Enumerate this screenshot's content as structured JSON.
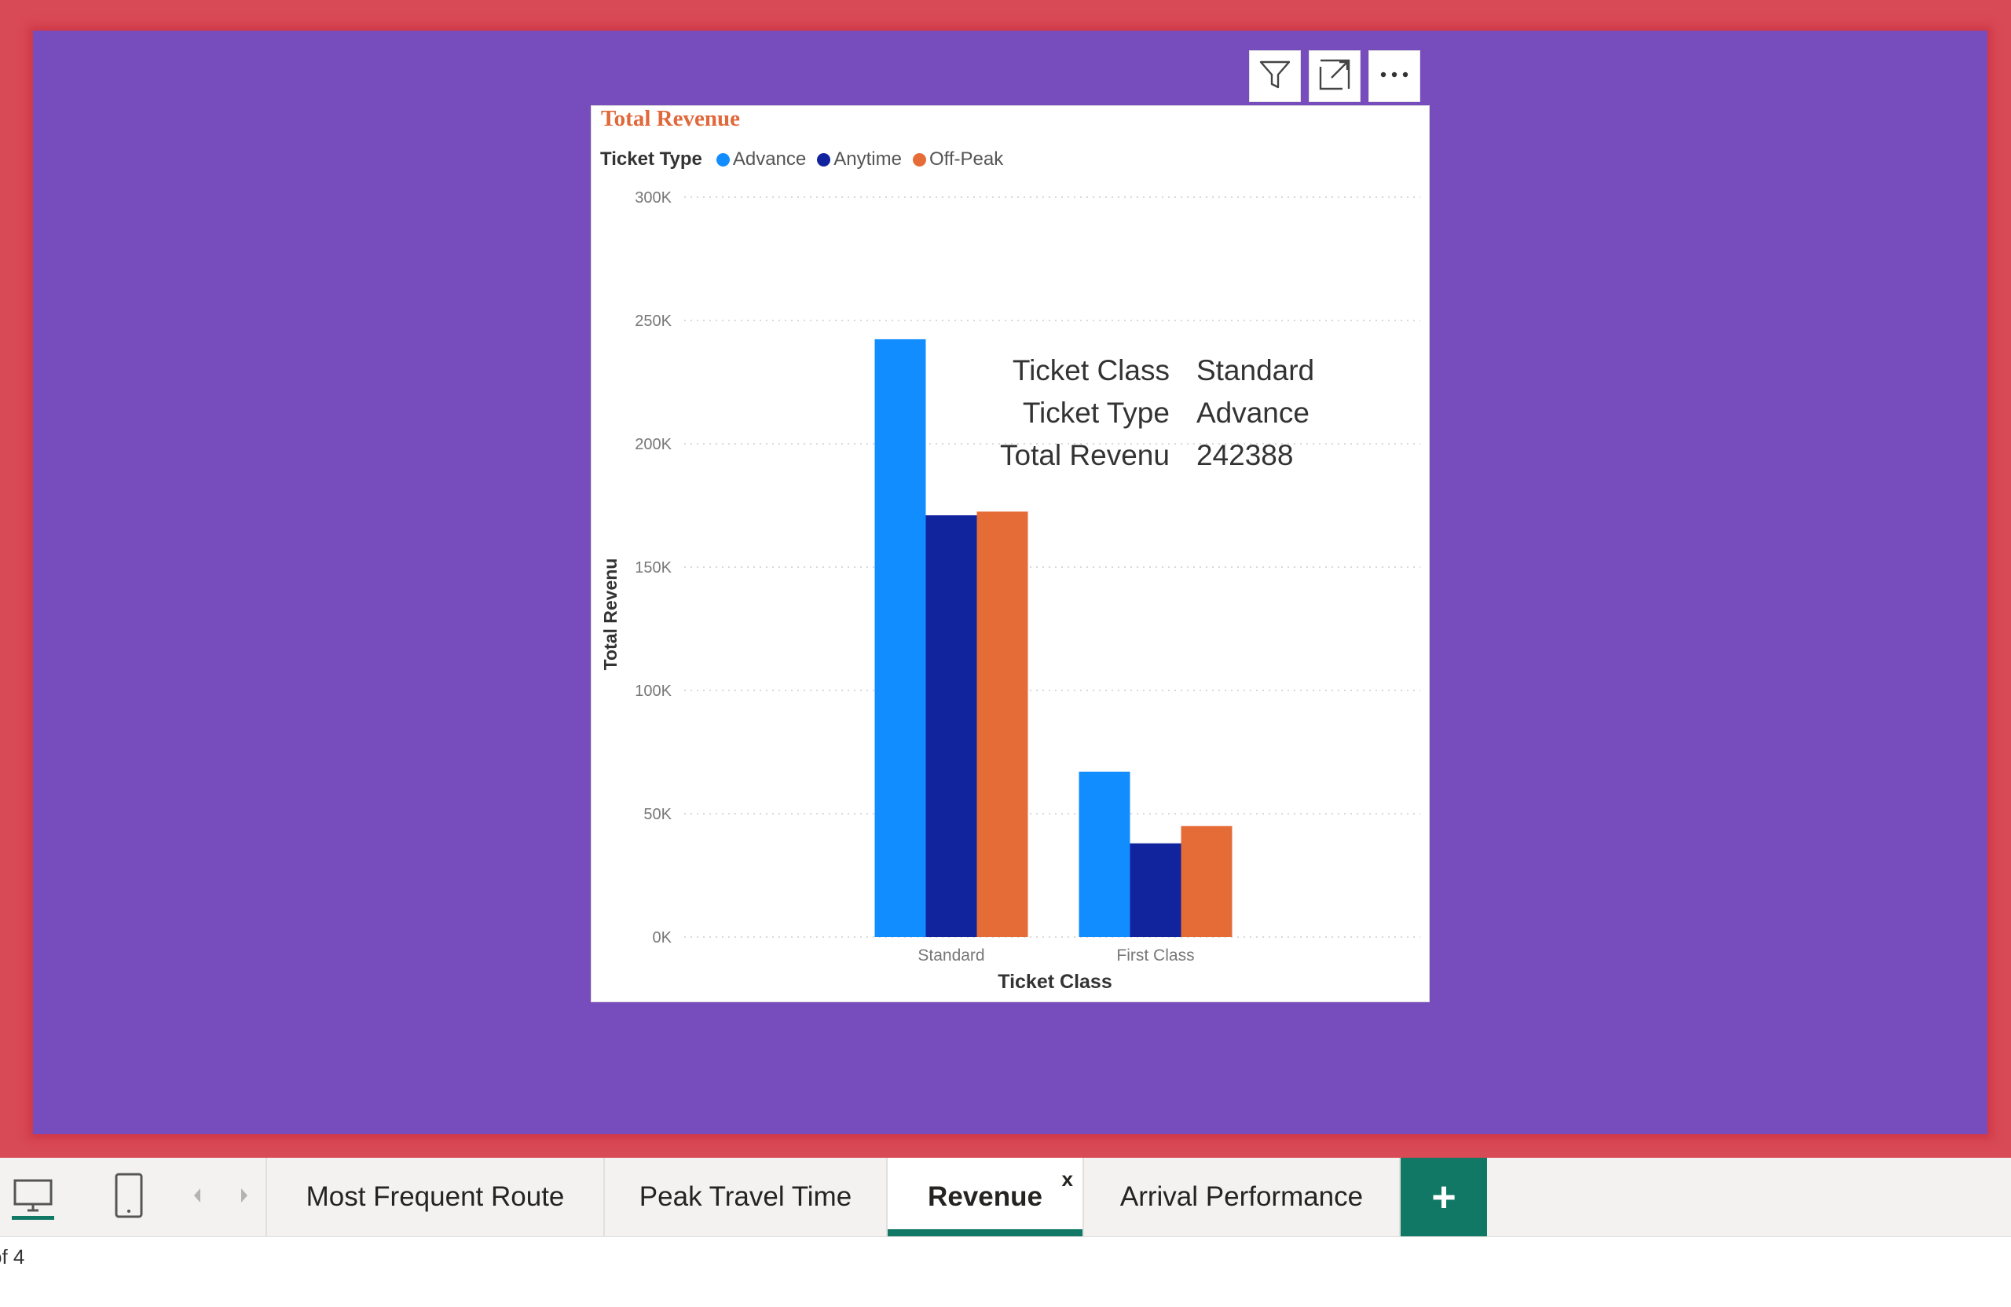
{
  "visual": {
    "title": "Total Revenue",
    "legend_title": "Ticket Type",
    "header_buttons": {
      "filter": "filter-icon",
      "focus": "focus-mode-icon",
      "more": "more-options-icon"
    }
  },
  "chart_data": {
    "type": "bar",
    "title": "Total Revenue",
    "xlabel": "Ticket Class",
    "ylabel": "Total Revenu",
    "categories": [
      "Standard",
      "First Class"
    ],
    "series": [
      {
        "name": "Advance",
        "color": "#118dff",
        "values": [
          242388,
          67000
        ]
      },
      {
        "name": "Anytime",
        "color": "#12239e",
        "values": [
          171000,
          38000
        ]
      },
      {
        "name": "Off-Peak",
        "color": "#e66c37",
        "values": [
          172500,
          45000
        ]
      }
    ],
    "ylim": [
      0,
      300000
    ],
    "yticks": [
      0,
      50000,
      100000,
      150000,
      200000,
      250000,
      300000
    ],
    "ytick_labels": [
      "0K",
      "50K",
      "100K",
      "150K",
      "200K",
      "250K",
      "300K"
    ],
    "grid": true,
    "legend_position": "top-left"
  },
  "tooltip": {
    "rows": [
      {
        "key": "Ticket Class",
        "value": "Standard"
      },
      {
        "key": "Ticket Type",
        "value": "Advance"
      },
      {
        "key": "Total Revenu",
        "value": "242388"
      }
    ]
  },
  "taskbar": {
    "tabs": [
      {
        "label": "Most Frequent Route",
        "active": false
      },
      {
        "label": "Peak Travel Time",
        "active": false
      },
      {
        "label": "Revenue",
        "active": true,
        "close": "x"
      },
      {
        "label": "Arrival Performance",
        "active": false
      }
    ],
    "add_label": "+"
  },
  "status": {
    "page_text": "of 4"
  }
}
